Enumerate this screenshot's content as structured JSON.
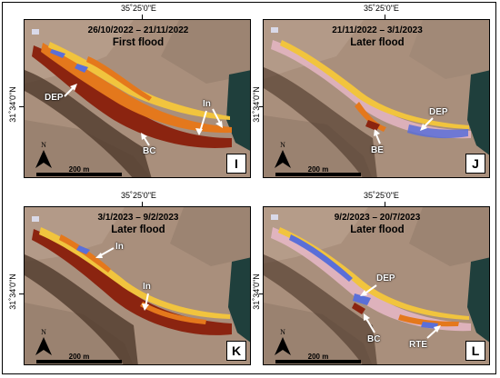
{
  "coordinates": {
    "longitude": "35˚25'0\"E",
    "latitude": "31˚34'0\"N"
  },
  "north_label": "N",
  "scale_label": "200 m",
  "colors": {
    "terrain": "#a98f7c",
    "terrain_dark": "#7c6656",
    "channel_shadow": "#4a3427",
    "sea": "#1f3f3c",
    "erosion": "#8b2410",
    "flow_orange": "#e4781c",
    "flow_yellow": "#f1c43e",
    "deposition_blue": "#5a6fd8",
    "sediment_pink": "#e8b8c8"
  },
  "panels": [
    {
      "id": "I",
      "dates": "26/10/2022 – 21/11/2022",
      "title": "First flood",
      "labels": [
        "DEP",
        "In",
        "BC"
      ]
    },
    {
      "id": "J",
      "dates": "21/11/2022 – 3/1/2023",
      "title": "Later flood",
      "labels": [
        "DEP",
        "BE"
      ]
    },
    {
      "id": "K",
      "dates": "3/1/2023 – 9/2/2023",
      "title": "Later flood",
      "labels": [
        "In",
        "In"
      ]
    },
    {
      "id": "L",
      "dates": "9/2/2023 – 20/7/2023",
      "title": "Later flood",
      "labels": [
        "DEP",
        "BC",
        "RTE"
      ]
    }
  ]
}
